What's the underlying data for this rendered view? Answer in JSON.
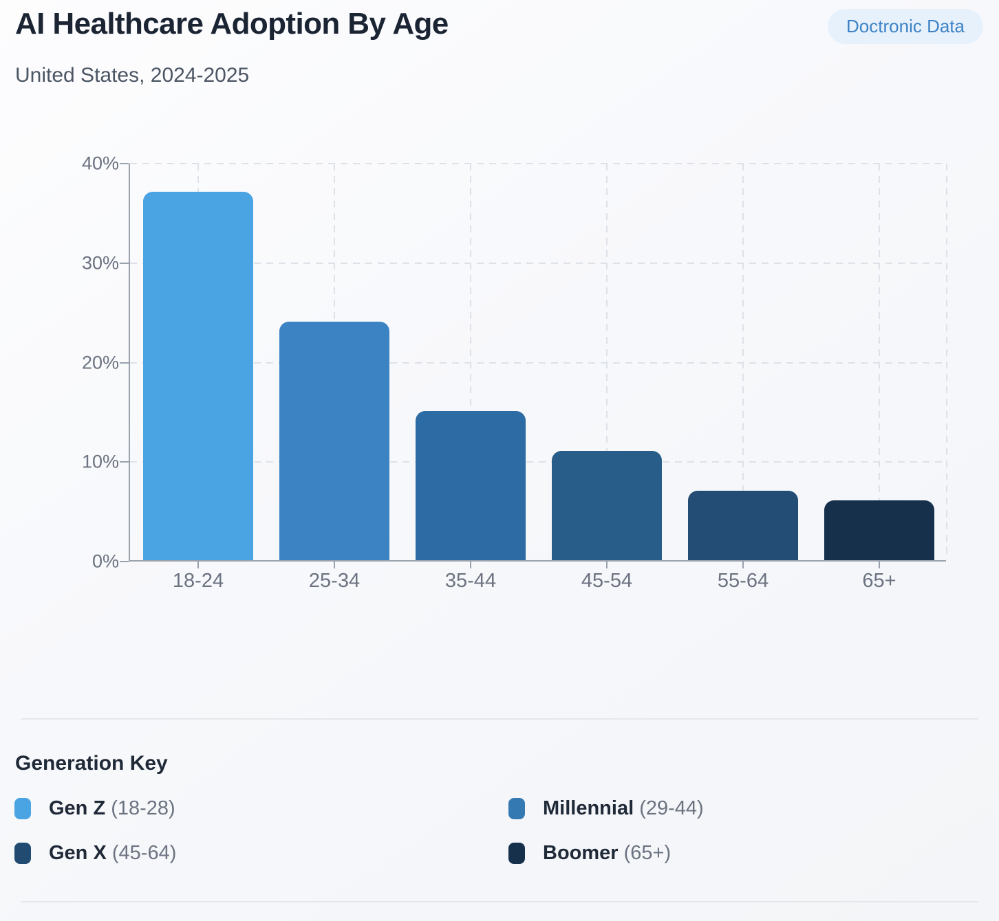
{
  "header": {
    "title": "AI Healthcare Adoption By Age",
    "subtitle": "United States, 2024-2025",
    "badge_label": "Doctronic Data"
  },
  "chart_data": {
    "type": "bar",
    "title": "AI Healthcare Adoption By Age",
    "subtitle": "United States, 2024-2025",
    "categories": [
      "18-24",
      "25-34",
      "35-44",
      "45-54",
      "55-64",
      "65+"
    ],
    "values": [
      37,
      24,
      15,
      11,
      7,
      6
    ],
    "value_unit": "%",
    "xlabel": "",
    "ylabel": "",
    "ylim": [
      0,
      40
    ],
    "yticks": [
      {
        "value": 40,
        "label": "40%"
      },
      {
        "value": 30,
        "label": "30%"
      },
      {
        "value": 20,
        "label": "20%"
      },
      {
        "value": 10,
        "label": "10%"
      },
      {
        "value": 0,
        "label": "0%"
      }
    ],
    "grid": "dashed",
    "bar_colors": [
      "#4AA3E3",
      "#3C83C4",
      "#2C6BA3",
      "#275D88",
      "#234D74",
      "#16304C"
    ]
  },
  "legend": {
    "heading": "Generation Key",
    "items": [
      {
        "name": "Gen Z",
        "range": "(18-28)",
        "color": "#4AA3E3"
      },
      {
        "name": "Millennial",
        "range": "(29-44)",
        "color": "#3579B3"
      },
      {
        "name": "Gen X",
        "range": "(45-64)",
        "color": "#224B72"
      },
      {
        "name": "Boomer",
        "range": "(65+)",
        "color": "#16304C"
      }
    ]
  },
  "colors": {
    "badge_bg": "#E7F1FC",
    "badge_text": "#3D82C6",
    "axis": "#9AA2AD",
    "grid": "#DDE1E8",
    "text_primary": "#1B2433",
    "text_secondary": "#4B5563",
    "text_axis": "#6B7280",
    "divider": "#E5E7EB"
  }
}
